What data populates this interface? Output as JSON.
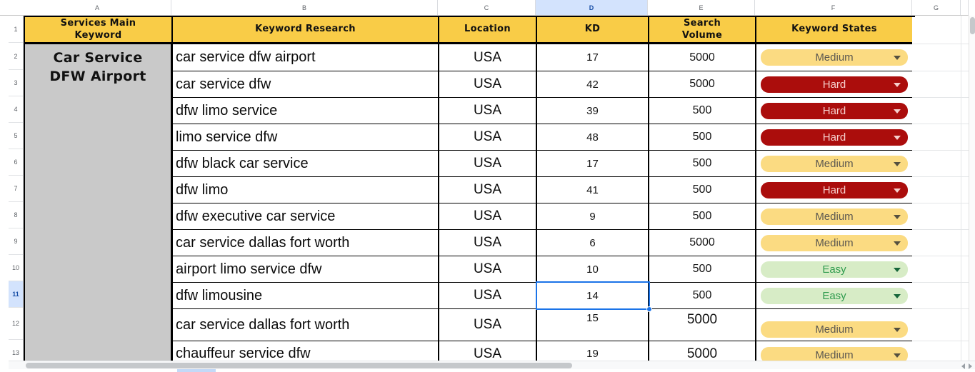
{
  "spreadsheet": {
    "column_letters": [
      "A",
      "B",
      "C",
      "D",
      "E",
      "F",
      "G"
    ],
    "row_numbers": [
      "1",
      "2",
      "3",
      "4",
      "5",
      "6",
      "7",
      "8",
      "9",
      "10",
      "11",
      "12",
      "13"
    ],
    "selection": {
      "column": "D",
      "row": "11",
      "cell": "D11"
    }
  },
  "table": {
    "headers": {
      "main_keyword": "Services Main\nKeyword",
      "keyword_research": "Keyword Research",
      "location": "Location",
      "kd": "KD",
      "search_volume": "Search\nVolume",
      "keyword_states": "Keyword States"
    },
    "merged_main_keyword": "Car Service\nDFW Airport",
    "rows": [
      {
        "row": "2",
        "keyword": "car service dfw airport",
        "location": "USA",
        "kd": "17",
        "volume": "5000",
        "state": "Medium"
      },
      {
        "row": "3",
        "keyword": "car service dfw",
        "location": "USA",
        "kd": "42",
        "volume": "5000",
        "state": "Hard"
      },
      {
        "row": "4",
        "keyword": "dfw limo service",
        "location": "USA",
        "kd": "39",
        "volume": "500",
        "state": "Hard"
      },
      {
        "row": "5",
        "keyword": "limo service dfw",
        "location": "USA",
        "kd": "48",
        "volume": "500",
        "state": "Hard"
      },
      {
        "row": "6",
        "keyword": "dfw black car service",
        "location": "USA",
        "kd": "17",
        "volume": "500",
        "state": "Medium"
      },
      {
        "row": "7",
        "keyword": "dfw limo",
        "location": "USA",
        "kd": "41",
        "volume": "500",
        "state": "Hard"
      },
      {
        "row": "8",
        "keyword": "dfw executive car service",
        "location": "USA",
        "kd": "9",
        "volume": "500",
        "state": "Medium"
      },
      {
        "row": "9",
        "keyword": "car service dallas fort worth",
        "location": "USA",
        "kd": "6",
        "volume": "5000",
        "state": "Medium"
      },
      {
        "row": "10",
        "keyword": "airport limo service dfw",
        "location": "USA",
        "kd": "10",
        "volume": "500",
        "state": "Easy"
      },
      {
        "row": "11",
        "keyword": "dfw limousine",
        "location": "USA",
        "kd": "14",
        "volume": "500",
        "state": "Easy",
        "selected": true
      },
      {
        "row": "12",
        "keyword": "car service dallas fort worth",
        "location": "USA",
        "kd": "15",
        "volume": "5000",
        "state": "Medium",
        "tall": true,
        "large_volume": true
      },
      {
        "row": "13",
        "keyword": "chauffeur service dfw",
        "location": "USA",
        "kd": "19",
        "volume": "5000",
        "state": "Medium",
        "large_volume": true,
        "chip_low": true
      }
    ]
  },
  "state_styles": {
    "Medium": {
      "bg": "#FBDB82",
      "text": "#5C5850",
      "arrow": "#55503F"
    },
    "Hard": {
      "bg": "#AB0D0C",
      "text": "#F6D0CD",
      "arrow": "#F6D0CD"
    },
    "Easy": {
      "bg": "#D7ECC6",
      "text": "#2F9B4E",
      "arrow": "#17663A"
    }
  },
  "colors": {
    "header_fill": "#F9CC47",
    "merged_fill": "#C9C9C9",
    "selection_blue": "#1A73E8",
    "header_highlight": "#D3E3FD",
    "highlight_text": "#174EA6"
  }
}
